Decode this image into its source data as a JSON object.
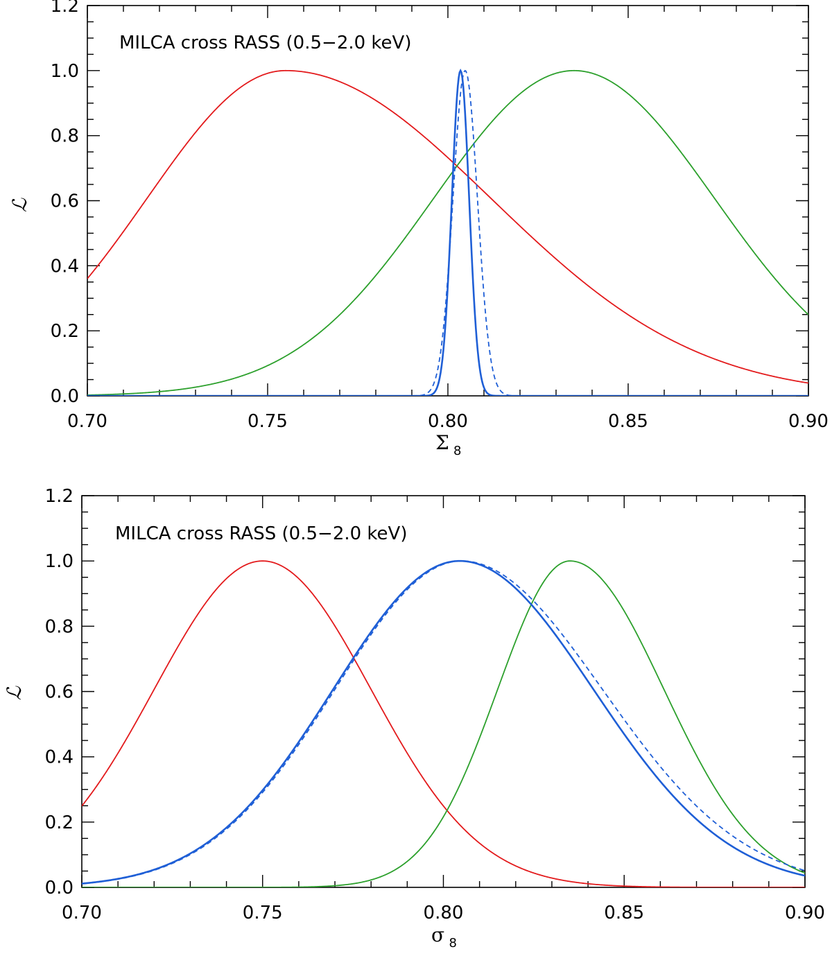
{
  "chart_data": [
    {
      "type": "line",
      "annotation": "MILCA cross RASS (0.5−2.0 keV)",
      "xlabel_main": "Σ",
      "xlabel_sub": "8",
      "ylabel": "ℒ",
      "xlim": [
        0.7,
        0.9
      ],
      "ylim": [
        0.0,
        1.2
      ],
      "x_ticks": [
        "0.70",
        "0.75",
        "0.80",
        "0.85",
        "0.90"
      ],
      "y_ticks": [
        "0.0",
        "0.2",
        "0.4",
        "0.6",
        "0.8",
        "1.0",
        "1.2"
      ],
      "x_tick_values": [
        0.7,
        0.75,
        0.8,
        0.85,
        0.9
      ],
      "y_tick_values": [
        0.0,
        0.2,
        0.4,
        0.6,
        0.8,
        1.0,
        1.2
      ],
      "series": [
        {
          "color": "#e31a1c",
          "style": "solid",
          "shape": "gaussian",
          "peak_x": 0.755,
          "sigma_left": 0.0385,
          "sigma_right": 0.0385,
          "asym_tail_right": 0.057
        },
        {
          "color": "#2ca02c",
          "style": "solid",
          "shape": "gaussian",
          "peak_x": 0.835,
          "sigma_left": 0.039,
          "sigma_right": 0.039
        },
        {
          "color": "#1f5fd6",
          "style": "solid",
          "shape": "gaussian",
          "peak_x": 0.8035,
          "sigma_left": 0.0024,
          "sigma_right": 0.0024,
          "thick": true
        },
        {
          "color": "#1f5fd6",
          "style": "dashed",
          "shape": "gaussian",
          "peak_x": 0.8048,
          "sigma_left": 0.0034,
          "sigma_right": 0.0034
        }
      ]
    },
    {
      "type": "line",
      "annotation": "MILCA cross RASS (0.5−2.0 keV)",
      "xlabel_main": "σ",
      "xlabel_sub": "8",
      "ylabel": "ℒ",
      "xlim": [
        0.7,
        0.9
      ],
      "ylim": [
        0.0,
        1.2
      ],
      "x_ticks": [
        "0.70",
        "0.75",
        "0.80",
        "0.85",
        "0.90"
      ],
      "y_ticks": [
        "0.0",
        "0.2",
        "0.4",
        "0.6",
        "0.8",
        "1.0",
        "1.2"
      ],
      "x_tick_values": [
        0.7,
        0.75,
        0.8,
        0.85,
        0.9
      ],
      "y_tick_values": [
        0.0,
        0.2,
        0.4,
        0.6,
        0.8,
        1.0,
        1.2
      ],
      "series": [
        {
          "color": "#e31a1c",
          "style": "solid",
          "shape": "gaussian",
          "peak_x": 0.75,
          "sigma_left": 0.03,
          "sigma_right": 0.03
        },
        {
          "color": "#2ca02c",
          "style": "solid",
          "shape": "gaussian",
          "peak_x": 0.835,
          "sigma_left": 0.02,
          "sigma_right": 0.026
        },
        {
          "color": "#1f5fd6",
          "style": "solid",
          "shape": "gaussian",
          "peak_x": 0.8045,
          "sigma_left": 0.035,
          "sigma_right": 0.037,
          "thick": true
        },
        {
          "color": "#1f5fd6",
          "style": "dashed",
          "shape": "gaussian",
          "peak_x": 0.805,
          "sigma_left": 0.035,
          "sigma_right": 0.039
        }
      ]
    }
  ]
}
